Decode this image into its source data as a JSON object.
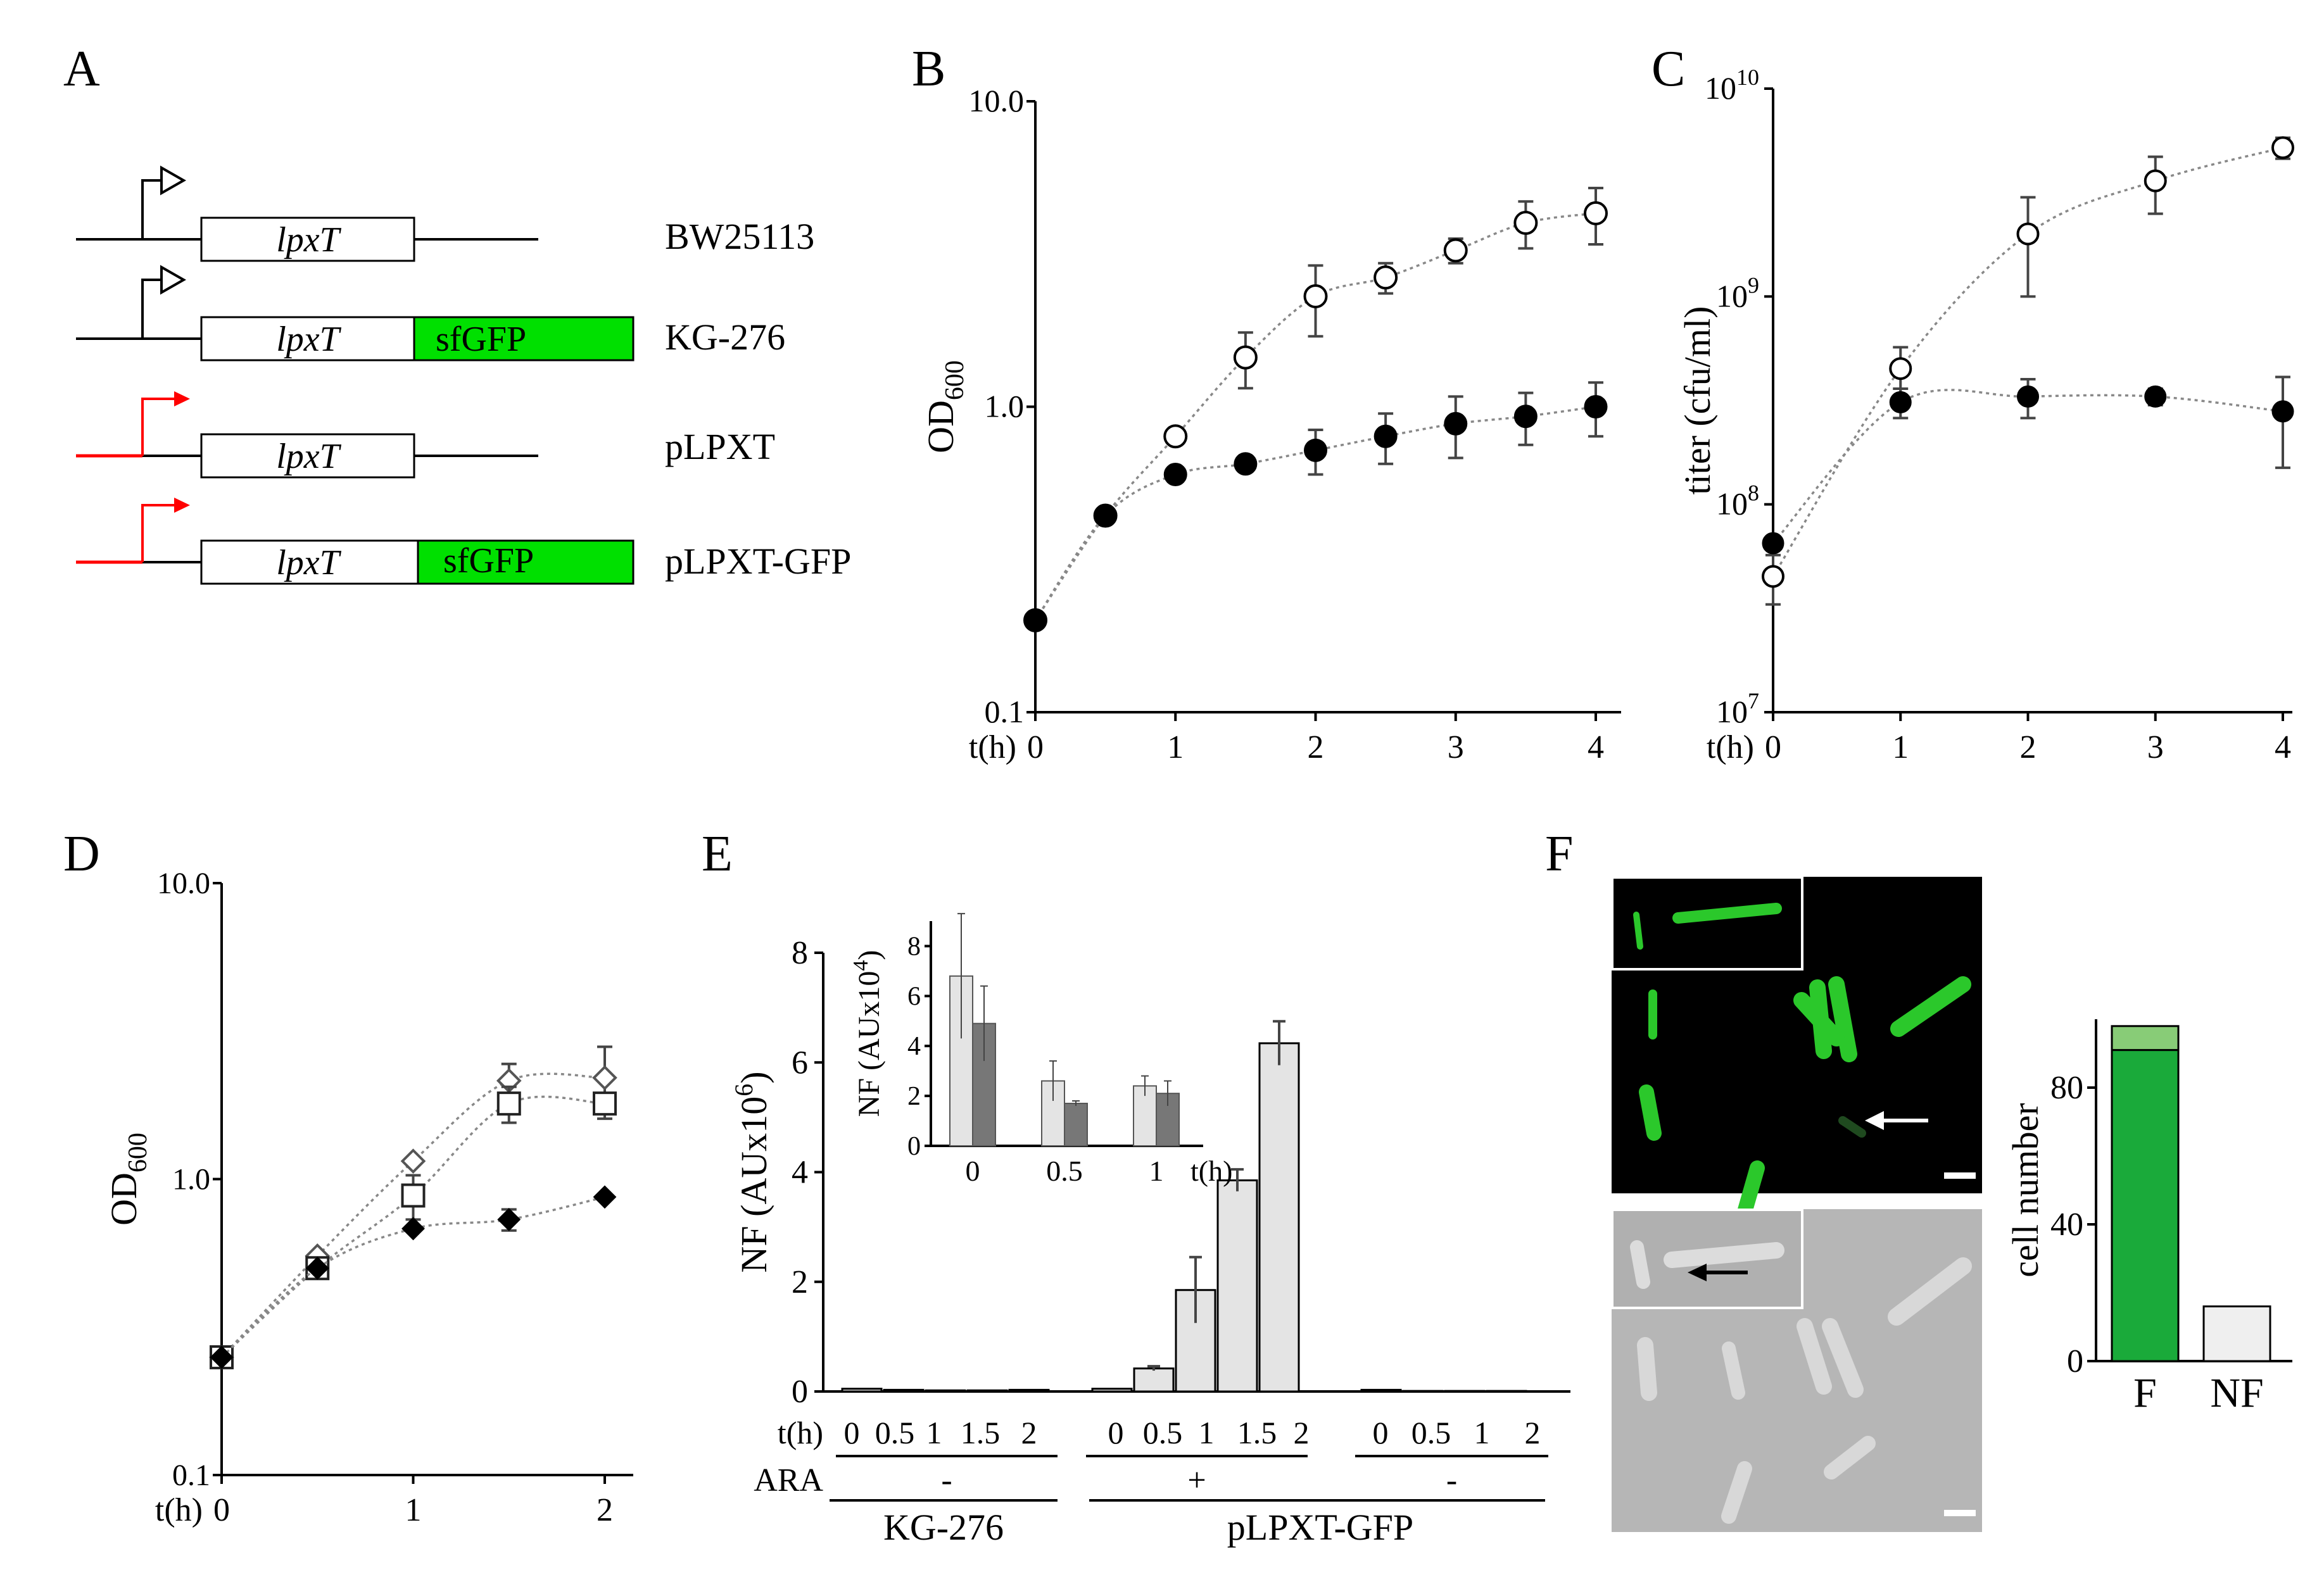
{
  "panels": {
    "A": {
      "letter": "A",
      "constructs": [
        {
          "strain": "BW25113",
          "gene": "lpxT",
          "fusion": "",
          "promoter": "native"
        },
        {
          "strain": "KG-276",
          "gene": "lpxT",
          "fusion": "sfGFP",
          "promoter": "native"
        },
        {
          "strain": "pLPXT",
          "gene": "lpxT",
          "fusion": "",
          "promoter": "inducible"
        },
        {
          "strain": "pLPXT-GFP",
          "gene": "lpxT",
          "fusion": "sfGFP",
          "promoter": "inducible"
        }
      ],
      "colors": {
        "native": "#000000",
        "inducible": "#ff0000",
        "sfgfp": "#00e000"
      }
    },
    "F": {
      "letter": "F",
      "colors": {
        "background": "#000000",
        "cell_fluor": "#33cc33",
        "phase_bg": "#b8b8b8"
      }
    }
  },
  "chart_data": [
    {
      "panel": "B",
      "type": "scatter",
      "scale": "log",
      "xlabel": "t(h)",
      "ylabel": "OD600",
      "ylabel_main": "OD",
      "ylabel_sub": "600",
      "xlim": [
        0,
        4
      ],
      "ylim": [
        0.1,
        10.0
      ],
      "xticks": [
        0,
        1,
        2,
        3,
        4
      ],
      "yticks": [
        {
          "v": 0.1,
          "label": "0.1"
        },
        {
          "v": 1.0,
          "label": "1.0"
        },
        {
          "v": 10.0,
          "label": "10.0"
        }
      ],
      "series": [
        {
          "marker": "open-circle",
          "x": [
            0,
            0.5,
            1,
            1.5,
            2,
            2.5,
            3,
            3.5,
            4
          ],
          "y": [
            0.2,
            0.44,
            0.8,
            1.45,
            2.3,
            2.65,
            3.25,
            4.0,
            4.3
          ],
          "err": [
            0,
            0,
            0,
            0.3,
            0.6,
            0.3,
            0.3,
            0.7,
            0.9
          ]
        },
        {
          "marker": "filled-circle",
          "x": [
            0,
            0.5,
            1,
            1.5,
            2,
            2.5,
            3,
            3.5,
            4
          ],
          "y": [
            0.2,
            0.44,
            0.6,
            0.65,
            0.72,
            0.8,
            0.88,
            0.93,
            1.0
          ],
          "err": [
            0,
            0,
            0,
            0,
            0.12,
            0.15,
            0.2,
            0.18,
            0.2
          ]
        }
      ]
    },
    {
      "panel": "C",
      "type": "scatter",
      "scale": "log",
      "xlabel": "t(h)",
      "ylabel": "titer (cfu/ml)",
      "xlim": [
        0,
        4
      ],
      "ylim": [
        10000000.0,
        10000000000.0
      ],
      "xticks": [
        0,
        1,
        2,
        3,
        4
      ],
      "yticks": [
        {
          "v": 10000000.0,
          "exp": "7"
        },
        {
          "v": 100000000.0,
          "exp": "8"
        },
        {
          "v": 1000000000.0,
          "exp": "9"
        },
        {
          "v": 10000000000.0,
          "exp": "10"
        }
      ],
      "series": [
        {
          "marker": "open-circle",
          "x": [
            0,
            1,
            2,
            3,
            4
          ],
          "y": [
            45000000.0,
            450000000.0,
            2000000000.0,
            3600000000.0,
            5200000000.0
          ],
          "err": [
            12000000.0,
            120000000.0,
            1000000000.0,
            1100000000.0,
            600000000.0
          ]
        },
        {
          "marker": "filled-circle",
          "x": [
            0,
            1,
            2,
            3,
            4
          ],
          "y": [
            65000000.0,
            310000000.0,
            330000000.0,
            330000000.0,
            280000000.0
          ],
          "err": [
            0,
            50000000.0,
            70000000.0,
            30000000.0,
            130000000.0
          ]
        }
      ]
    },
    {
      "panel": "D",
      "type": "scatter",
      "scale": "log",
      "xlabel": "t(h)",
      "ylabel": "OD600",
      "ylabel_main": "OD",
      "ylabel_sub": "600",
      "xlim": [
        0,
        2
      ],
      "ylim": [
        0.1,
        10.0
      ],
      "xticks": [
        0,
        1,
        2
      ],
      "yticks": [
        {
          "v": 0.1,
          "label": "0.1"
        },
        {
          "v": 1.0,
          "label": "1.0"
        },
        {
          "v": 10.0,
          "label": "10.0"
        }
      ],
      "series": [
        {
          "marker": "open-diamond",
          "x": [
            0,
            0.5,
            1,
            1.5,
            2
          ],
          "y": [
            0.25,
            0.55,
            1.15,
            2.15,
            2.2
          ],
          "err": [
            0,
            0,
            0,
            0.3,
            0.6
          ]
        },
        {
          "marker": "open-square",
          "x": [
            0,
            0.5,
            1,
            1.5,
            2
          ],
          "y": [
            0.25,
            0.5,
            0.88,
            1.8,
            1.8
          ],
          "err": [
            0,
            0,
            0.15,
            0.25,
            0
          ]
        },
        {
          "marker": "filled-diamond",
          "x": [
            0,
            0.5,
            1,
            1.5,
            2
          ],
          "y": [
            0.25,
            0.5,
            0.68,
            0.73,
            0.87
          ],
          "err": [
            0,
            0,
            0,
            0.06,
            0
          ]
        }
      ]
    },
    {
      "panel": "E",
      "type": "bar",
      "ylabel": "NF (AUx10",
      "ylabel_exp": "6",
      "ylabel_close": ")",
      "ylim": [
        0,
        8
      ],
      "yticks": [
        0,
        2,
        4,
        6,
        8
      ],
      "xlabel": "t(h)",
      "ara_label": "ARA",
      "groups": [
        {
          "strain": "KG-276",
          "ara": "-",
          "categories": [
            "0",
            "0.5",
            "1",
            "1.5",
            "2"
          ],
          "values": [
            0.05,
            0.03,
            0.02,
            0.02,
            0.03
          ],
          "err": [
            0,
            0,
            0,
            0,
            0
          ]
        },
        {
          "strain": "pLPXT-GFP",
          "ara": "+",
          "categories": [
            "0",
            "0.5",
            "1",
            "1.5",
            "2"
          ],
          "values": [
            0.05,
            0.42,
            1.85,
            3.85,
            6.35
          ],
          "err": [
            0,
            0.04,
            0.6,
            0.2,
            0.4
          ]
        },
        {
          "strain": "pLPXT-GFP",
          "ara": "-",
          "categories": [
            "0",
            "0.5",
            "1",
            "2"
          ],
          "values": [
            0.03,
            0.01,
            0.01,
            0.01
          ],
          "err": [
            0,
            0,
            0,
            0
          ]
        }
      ],
      "strain_labels": [
        "KG-276",
        "pLPXT-GFP"
      ],
      "bar_color": "#e4e4e4",
      "inset": {
        "type": "bar",
        "ylabel": "NF (AUx10",
        "ylabel_exp": "4",
        "ylabel_close": ")",
        "ylim": [
          0,
          9
        ],
        "yticks": [
          0,
          2,
          4,
          6,
          8
        ],
        "xlabel": "t(h)",
        "categories": [
          "0",
          "0.5",
          "1"
        ],
        "series": [
          {
            "values": [
              6.8,
              2.6,
              2.4
            ],
            "err": [
              2.5,
              0.8,
              0.4
            ],
            "color": "#e4e4e4"
          },
          {
            "values": [
              4.9,
              1.7,
              2.1
            ],
            "err": [
              1.5,
              0.1,
              0.5
            ],
            "color": "#777777"
          }
        ]
      }
    },
    {
      "panel": "F",
      "type": "bar",
      "ylabel": "cell number",
      "ylim": [
        0,
        100
      ],
      "yticks": [
        0,
        40,
        80
      ],
      "categories": [
        "F",
        "NF"
      ],
      "series": [
        {
          "values": [
            91,
            16
          ],
          "colors": [
            "#1aaa3a",
            "#efefef"
          ]
        },
        {
          "values": [
            7,
            0
          ],
          "colors": [
            "#88cc77",
            "#efefef"
          ]
        }
      ]
    }
  ]
}
